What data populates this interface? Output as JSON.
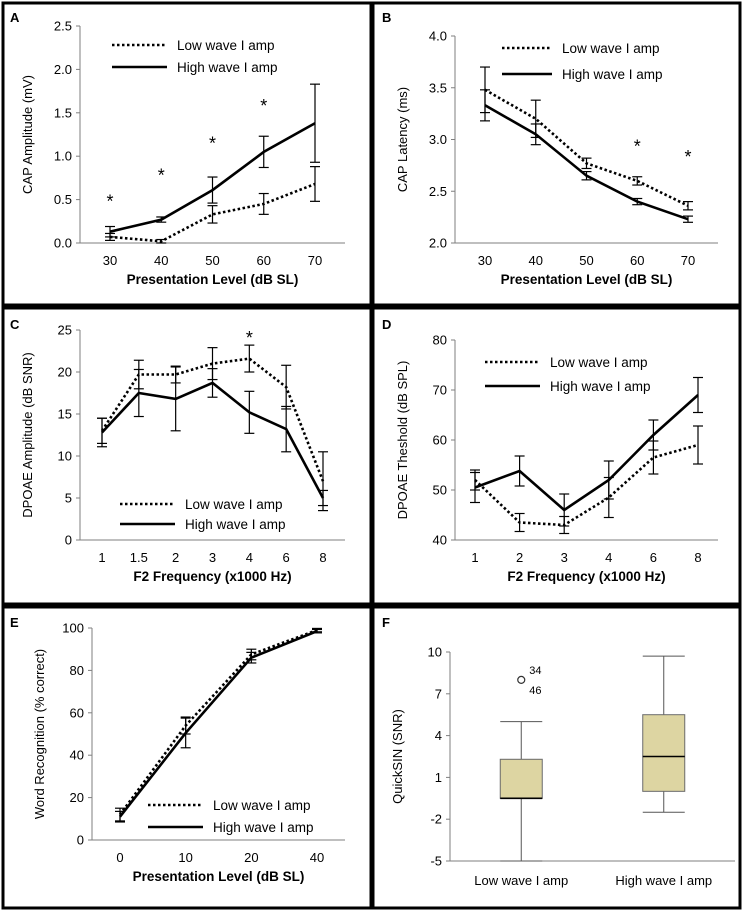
{
  "chart_data": [
    {
      "panel": "A",
      "type": "line",
      "ylabel": "CAP Amplitude (mV)",
      "xlabel": "Presentation Level (dB SL)",
      "categories": [
        "30",
        "40",
        "50",
        "60",
        "70"
      ],
      "ylim": [
        0,
        2.5
      ],
      "yticks": [
        "0.0",
        "0.5",
        "1.0",
        "1.5",
        "2.0",
        "2.5"
      ],
      "series": [
        {
          "name": "Low wave I amp",
          "style": "dotted",
          "values": [
            0.07,
            0.02,
            0.33,
            0.45,
            0.68
          ],
          "err": [
            0.04,
            0.02,
            0.1,
            0.12,
            0.2
          ]
        },
        {
          "name": "High wave I amp",
          "style": "solid",
          "values": [
            0.13,
            0.27,
            0.61,
            1.05,
            1.38
          ],
          "err": [
            0.06,
            0.03,
            0.15,
            0.18,
            0.45
          ]
        }
      ],
      "annotations": [
        "*",
        "*",
        "*",
        "*"
      ],
      "annot_index": [
        0,
        1,
        2,
        3
      ],
      "annot_y": [
        0.5,
        0.8,
        1.17,
        1.6
      ],
      "legend": "top-left"
    },
    {
      "panel": "B",
      "type": "line",
      "ylabel": "CAP Latency (ms)",
      "xlabel": "Presentation Level (dB SL)",
      "categories": [
        "30",
        "40",
        "50",
        "60",
        "70"
      ],
      "ylim": [
        2.0,
        4.0
      ],
      "yticks": [
        "2.0",
        "2.5",
        "3.0",
        "3.5",
        "4.0"
      ],
      "series": [
        {
          "name": "Low wave I amp",
          "style": "dotted",
          "values": [
            3.48,
            3.2,
            2.77,
            2.6,
            2.36
          ],
          "err": [
            0.22,
            0.18,
            0.05,
            0.04,
            0.04
          ]
        },
        {
          "name": "High wave I amp",
          "style": "solid",
          "values": [
            3.33,
            3.05,
            2.65,
            2.4,
            2.23
          ],
          "err": [
            0.15,
            0.1,
            0.04,
            0.03,
            0.03
          ]
        }
      ],
      "annotations": [
        "*",
        "*"
      ],
      "annot_index": [
        3,
        4
      ],
      "annot_y": [
        2.95,
        2.85
      ],
      "legend": "top-right"
    },
    {
      "panel": "C",
      "type": "line",
      "ylabel": "DPOAE Amplitude (dB SNR)",
      "xlabel": "F2 Frequency (x1000 Hz)",
      "categories": [
        "1",
        "1.5",
        "2",
        "3",
        "4",
        "6",
        "8"
      ],
      "ylim": [
        0,
        25
      ],
      "yticks": [
        "0",
        "5",
        "10",
        "15",
        "20",
        "25"
      ],
      "series": [
        {
          "name": "Low wave I amp",
          "style": "dotted",
          "values": [
            13.0,
            19.7,
            19.7,
            21.0,
            21.6,
            18.2,
            7.0
          ],
          "err": [
            1.5,
            1.7,
            1.0,
            1.9,
            1.6,
            2.6,
            3.5
          ]
        },
        {
          "name": "High wave I amp",
          "style": "solid",
          "values": [
            12.8,
            17.5,
            16.8,
            18.7,
            15.2,
            13.2,
            5.0
          ],
          "err": [
            1.7,
            2.8,
            3.8,
            1.7,
            2.5,
            2.7,
            0.9
          ]
        }
      ],
      "annotations": [
        "*"
      ],
      "annot_index": [
        4
      ],
      "annot_y": [
        24.3
      ],
      "legend": "bottom-left"
    },
    {
      "panel": "D",
      "type": "line",
      "ylabel": "DPOAE Theshold (dB SPL)",
      "xlabel": "F2 Frequency (x1000 Hz)",
      "categories": [
        "1",
        "2",
        "3",
        "4",
        "6",
        "8"
      ],
      "ylim": [
        40,
        80
      ],
      "yticks": [
        "40",
        "50",
        "60",
        "70",
        "80"
      ],
      "series": [
        {
          "name": "Low wave I amp",
          "style": "dotted",
          "values": [
            52.0,
            43.5,
            43.0,
            48.5,
            56.5,
            59.0
          ],
          "err": [
            2.0,
            1.8,
            1.7,
            4.0,
            3.3,
            3.8
          ]
        },
        {
          "name": "High wave I amp",
          "style": "solid",
          "values": [
            50.5,
            53.8,
            46.0,
            52.0,
            61.0,
            69.0
          ],
          "err": [
            3.0,
            3.0,
            3.2,
            3.8,
            3.0,
            3.5
          ]
        }
      ],
      "annotations": [],
      "annot_index": [],
      "annot_y": [],
      "legend": "top-right"
    },
    {
      "panel": "E",
      "type": "line",
      "ylabel": "Word Recognition (% correct)",
      "xlabel": "Presentation Level (dB SL)",
      "categories": [
        "0",
        "10",
        "20",
        "40"
      ],
      "ylim": [
        0,
        100
      ],
      "yticks": [
        "0",
        "20",
        "40",
        "60",
        "80",
        "100"
      ],
      "series": [
        {
          "name": "Low wave I amp",
          "style": "dotted",
          "values": [
            12.0,
            54.0,
            87.5,
            99.0
          ],
          "err": [
            3.0,
            4.0,
            2.5,
            0.8
          ]
        },
        {
          "name": "High wave I amp",
          "style": "solid",
          "values": [
            11.0,
            50.5,
            86.0,
            98.5
          ],
          "err": [
            2.5,
            7.0,
            2.5,
            0.8
          ]
        }
      ],
      "annotations": [],
      "annot_index": [],
      "annot_y": [],
      "legend": "bottom-right"
    },
    {
      "panel": "F",
      "type": "box",
      "ylabel": "QuickSIN (SNR)",
      "categories": [
        "Low wave I amp",
        "High wave I amp"
      ],
      "ylim": [
        -5,
        10
      ],
      "yticks": [
        "-5",
        "-2",
        "1",
        "4",
        "7",
        "10"
      ],
      "boxes": [
        {
          "min": -5.0,
          "q1": -0.5,
          "median": -0.5,
          "q3": 2.3,
          "max": 5.0,
          "outliers": [
            {
              "value": 8.0,
              "labels": [
                "34",
                "46"
              ]
            }
          ]
        },
        {
          "min": -1.5,
          "q1": 0.0,
          "median": 2.5,
          "q3": 5.5,
          "max": 9.7,
          "outliers": []
        }
      ]
    }
  ]
}
